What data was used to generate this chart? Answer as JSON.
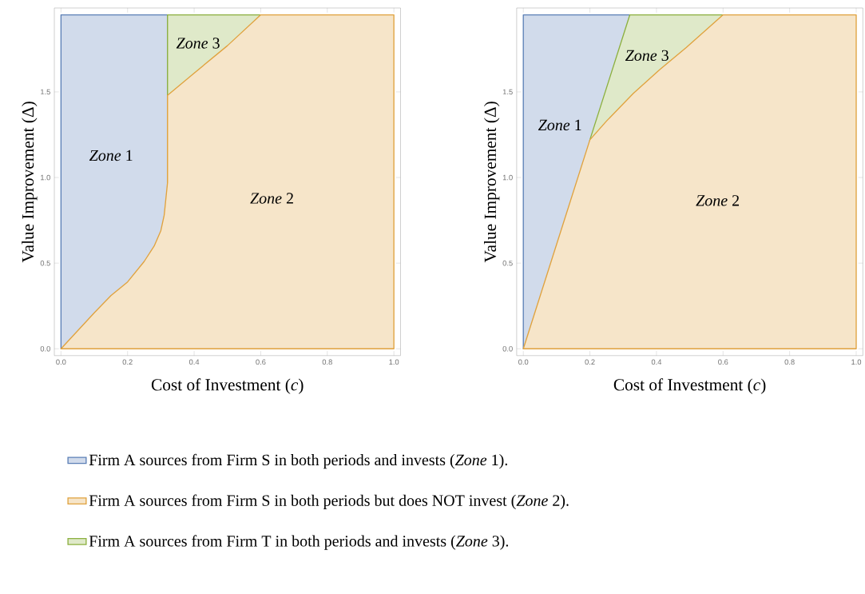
{
  "chart_data": [
    {
      "type": "area",
      "xlabel": "Cost of Investment (*c*)",
      "ylabel": "Value Improvement (Δ)",
      "xlim": [
        -0.02,
        1.02
      ],
      "ylim": [
        -0.04,
        1.99
      ],
      "xticks": [
        {
          "value": 0,
          "label": "0.0"
        },
        {
          "value": 0.2,
          "label": "0.2"
        },
        {
          "value": 0.4,
          "label": "0.4"
        },
        {
          "value": 0.6,
          "label": "0.6"
        },
        {
          "value": 0.8,
          "label": "0.8"
        },
        {
          "value": 1,
          "label": "1.0"
        }
      ],
      "yticks": [
        {
          "value": 0,
          "label": "0.0"
        },
        {
          "value": 0.5,
          "label": "0.5"
        },
        {
          "value": 1,
          "label": "1.0"
        },
        {
          "value": 1.5,
          "label": "1.5"
        }
      ],
      "legend": "bottom",
      "series": [
        {
          "name": "Firm A sources from Firm S in both periods and invests (*Zone* 1).",
          "color": "#5b7fb6",
          "x": [
            0,
            0.32
          ],
          "values": [
            1.95,
            1.95
          ]
        },
        {
          "name": "Firm A sources from Firm S in both periods but does NOT invest (*Zone* 2).",
          "color": "#e0a23e",
          "x": [
            0,
            0.05,
            0.1,
            0.15,
            0.2,
            0.25,
            0.28,
            0.3,
            0.31,
            0.32,
            0.32,
            0.4,
            0.5,
            0.6,
            1.0
          ],
          "values": [
            0,
            0.105,
            0.21,
            0.31,
            0.39,
            0.51,
            0.6,
            0.69,
            0.78,
            0.97,
            1.48,
            1.61,
            1.77,
            1.95,
            1.95
          ]
        },
        {
          "name": "Firm A sources from Firm T in both periods and invests (*Zone* 3).",
          "color": "#8cb03f",
          "x": [
            0.32,
            0.6
          ],
          "values": [
            1.95,
            1.95
          ]
        }
      ],
      "annotations": [
        "*Zone* 1",
        "*Zone* 2",
        "*Zone* 3"
      ]
    },
    {
      "type": "area",
      "xlabel": "Cost of Investment (*c*)",
      "ylabel": "Value Improvement (Δ)",
      "xlim": [
        -0.02,
        1.02
      ],
      "ylim": [
        -0.04,
        1.99
      ],
      "xticks": [
        {
          "value": 0,
          "label": "0.0"
        },
        {
          "value": 0.2,
          "label": "0.2"
        },
        {
          "value": 0.4,
          "label": "0.4"
        },
        {
          "value": 0.6,
          "label": "0.6"
        },
        {
          "value": 0.8,
          "label": "0.8"
        },
        {
          "value": 1,
          "label": "1.0"
        }
      ],
      "yticks": [
        {
          "value": 0,
          "label": "0.0"
        },
        {
          "value": 0.5,
          "label": "0.5"
        },
        {
          "value": 1,
          "label": "1.0"
        },
        {
          "value": 1.5,
          "label": "1.5"
        }
      ],
      "series": [
        {
          "color": "#5b7fb6",
          "x": [
            0,
            0.32
          ],
          "values": [
            1.95,
            1.95
          ]
        },
        {
          "color": "#e0a23e",
          "x": [
            0,
            0.2,
            0.25,
            0.33,
            0.41,
            0.49,
            0.6,
            1.0
          ],
          "values": [
            0,
            1.22,
            1.33,
            1.49,
            1.63,
            1.76,
            1.95,
            1.95
          ]
        },
        {
          "color": "#8cb03f",
          "x": [
            0.2,
            0.32,
            0.6
          ],
          "values": [
            1.22,
            1.95,
            1.95
          ]
        }
      ],
      "annotations": [
        "*Zone* 1",
        "*Zone* 2",
        "*Zone* 3"
      ]
    }
  ]
}
